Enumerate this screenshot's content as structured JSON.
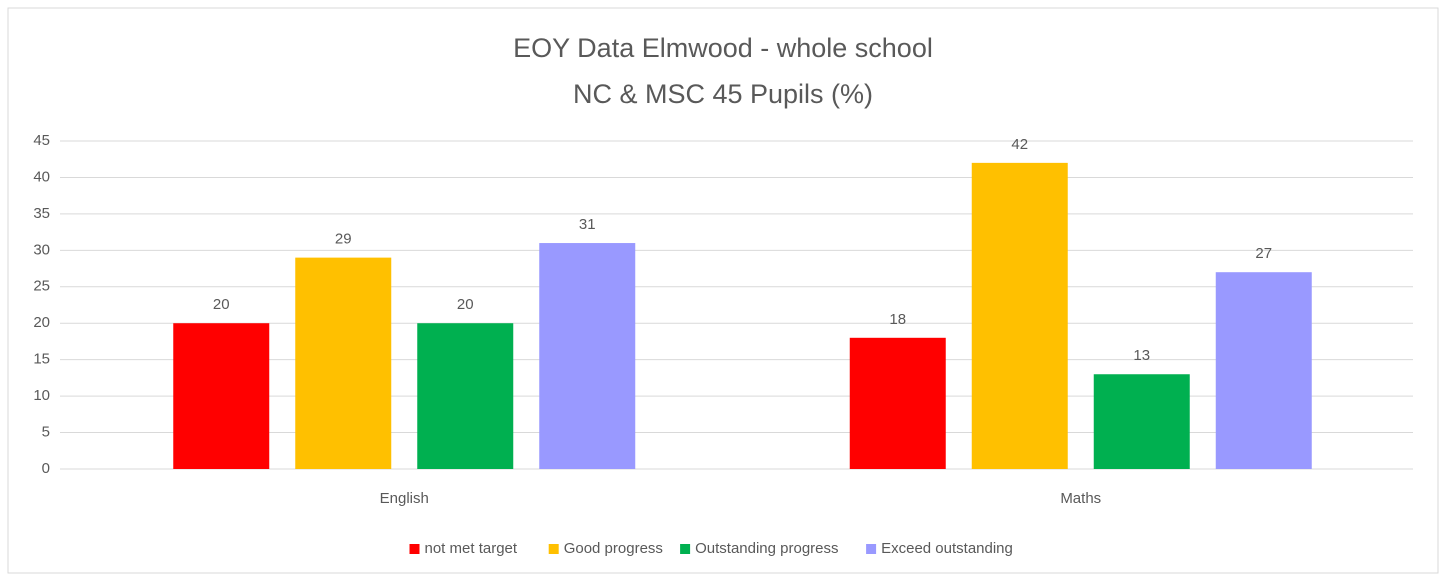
{
  "chart_data": {
    "type": "bar",
    "title": "EOY Data Elmwood - whole school",
    "subtitle": "NC & MSC 45 Pupils (%)",
    "categories": [
      "English",
      "Maths"
    ],
    "series": [
      {
        "name": "not met target",
        "color": "#ff0000",
        "values": [
          20,
          18
        ]
      },
      {
        "name": "Good progress",
        "color": "#ffc000",
        "values": [
          29,
          42
        ]
      },
      {
        "name": "Outstanding progress",
        "color": "#00b050",
        "values": [
          20,
          13
        ]
      },
      {
        "name": "Exceed outstanding",
        "color": "#9999ff",
        "values": [
          31,
          27
        ]
      }
    ],
    "ylim": [
      0,
      45
    ],
    "yticks": [
      0,
      5,
      10,
      15,
      20,
      25,
      30,
      35,
      40,
      45
    ],
    "grid": true,
    "legend": "bottom"
  }
}
